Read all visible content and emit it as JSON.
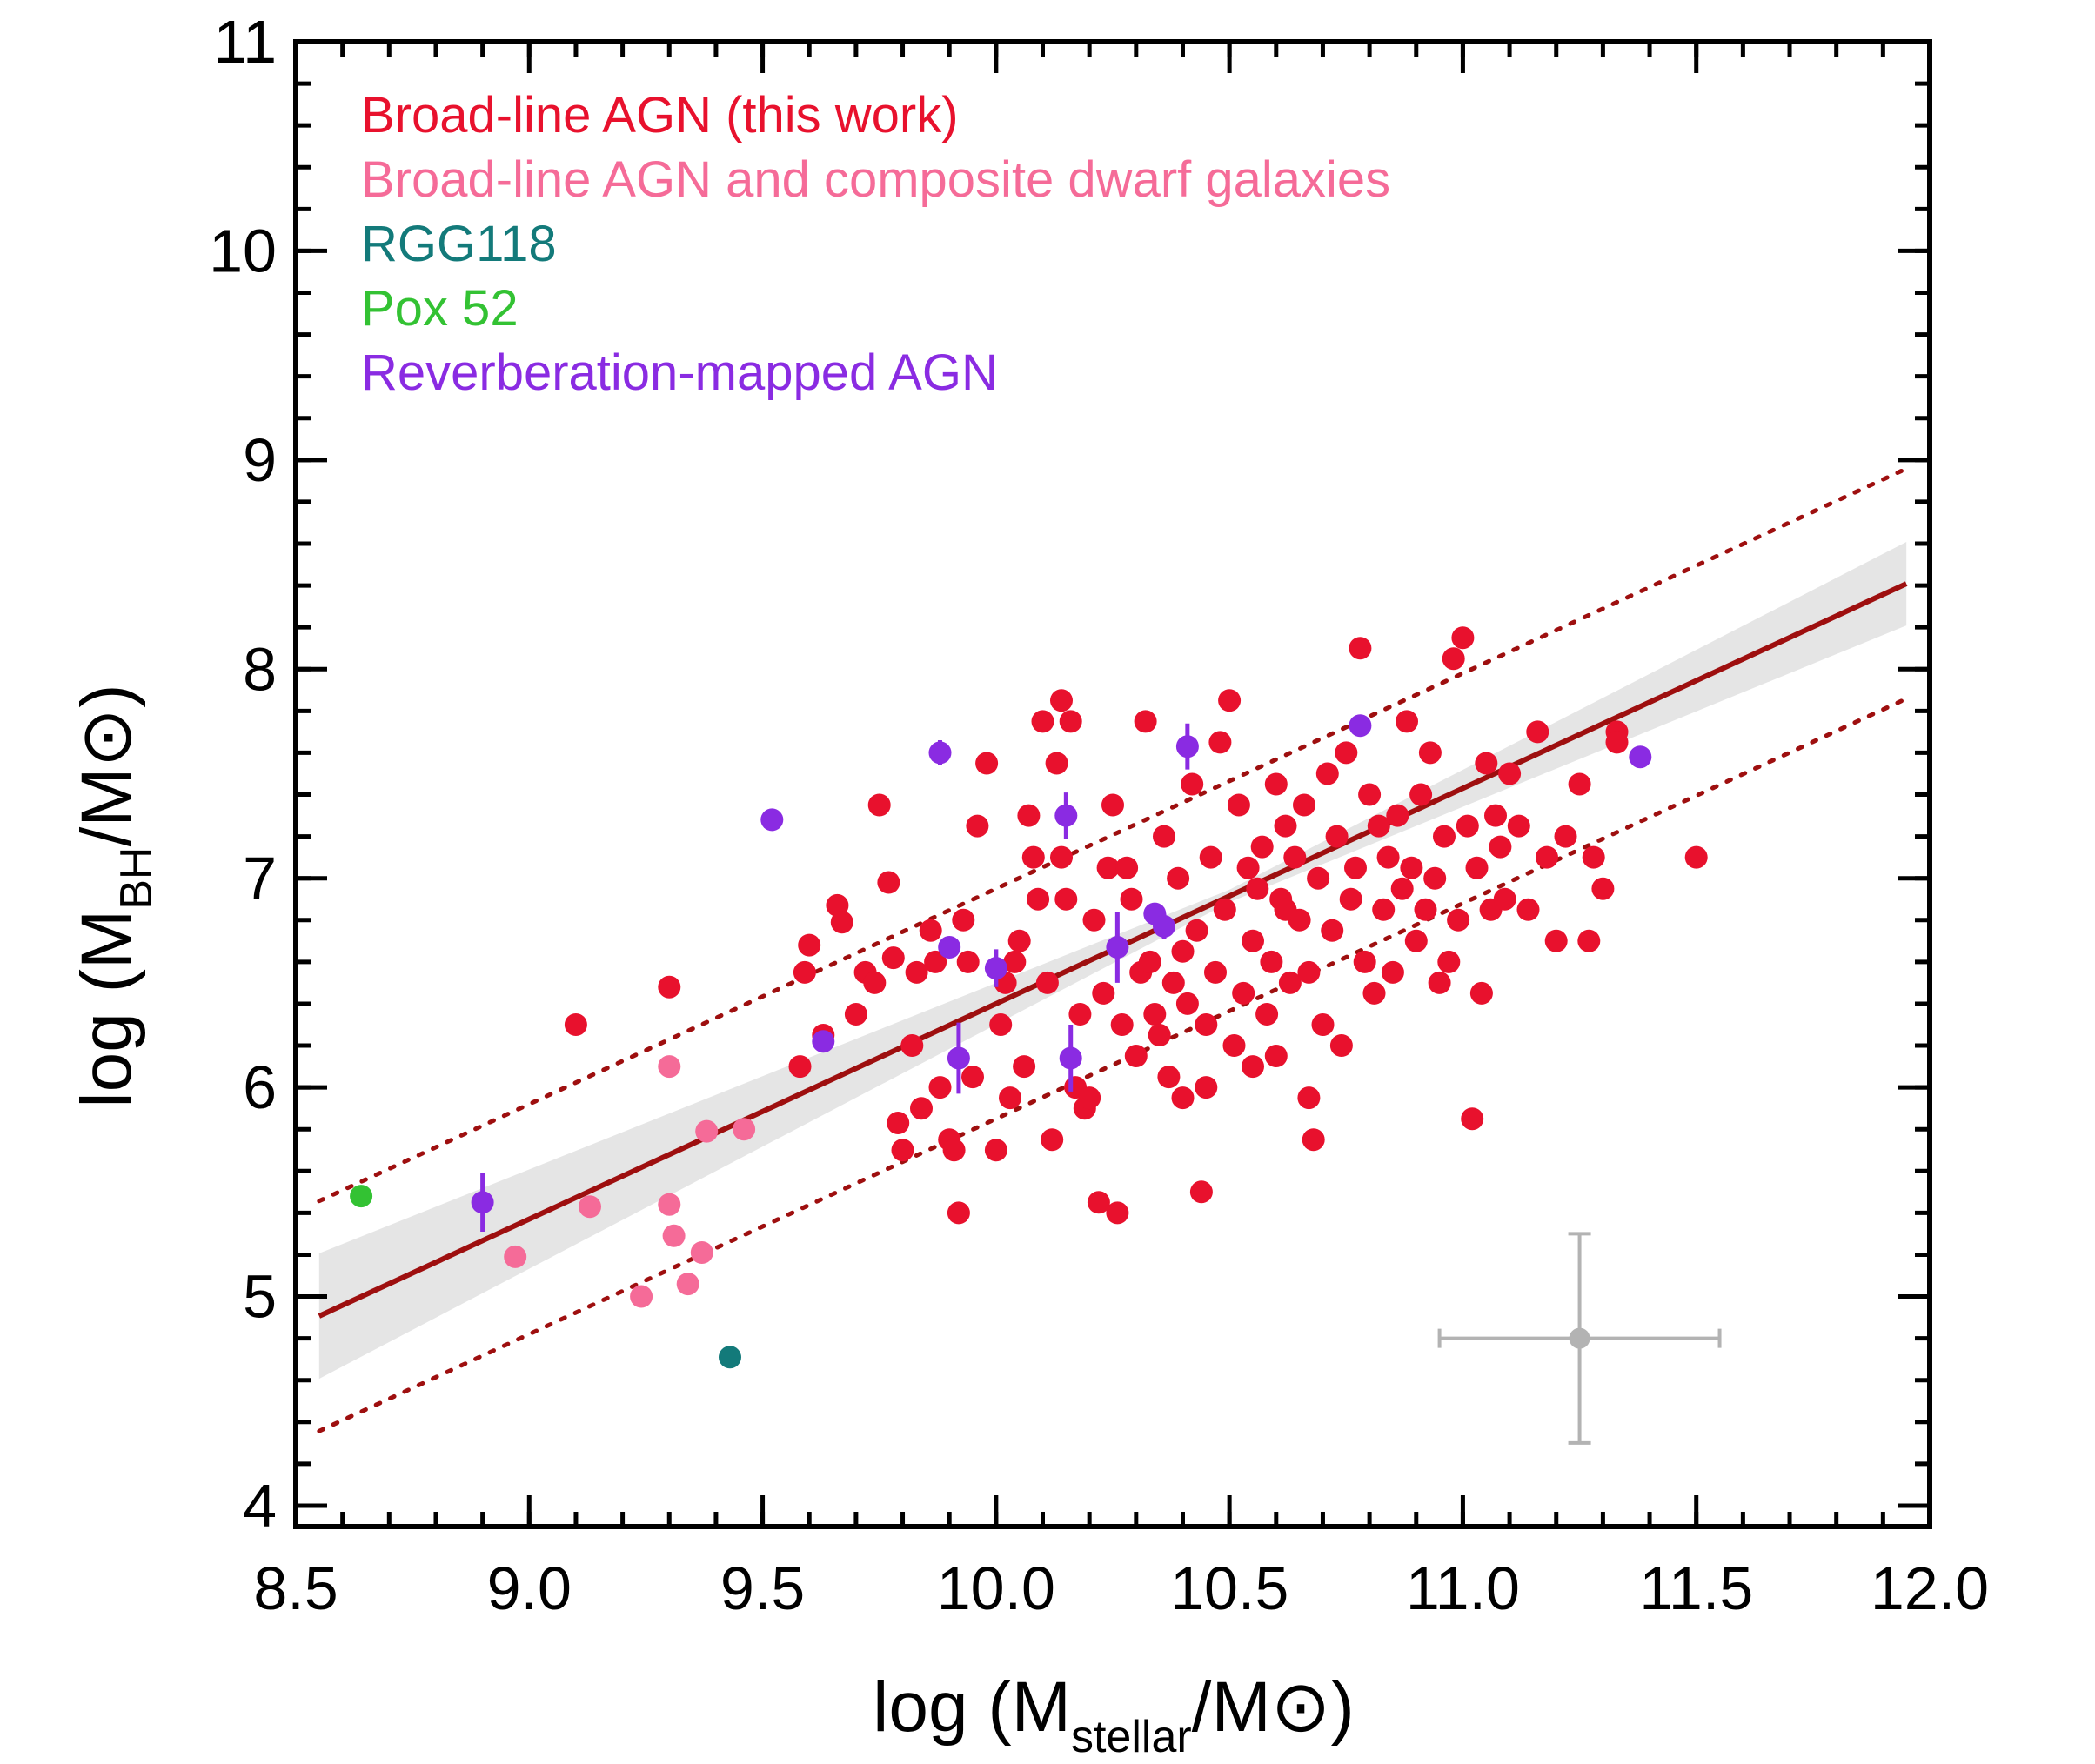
{
  "chart_data": {
    "type": "scatter",
    "xlabel": {
      "main": "log (M",
      "sub": "stellar",
      "rest": "/M",
      "sun": "⊙",
      "close": ")"
    },
    "ylabel": {
      "main": "log (M",
      "sub": "BH",
      "rest": "/M",
      "sun": "⊙",
      "close": ")"
    },
    "xlim": [
      8.5,
      12.0
    ],
    "ylim": [
      3.9,
      11.0
    ],
    "x_ticks": [
      "8.5",
      "9.0",
      "9.5",
      "10.0",
      "10.5",
      "11.0",
      "11.5",
      "12.0"
    ],
    "x_tick_values": [
      8.5,
      9.0,
      9.5,
      10.0,
      10.5,
      11.0,
      11.5,
      12.0
    ],
    "y_ticks": [
      "4",
      "5",
      "6",
      "7",
      "8",
      "9",
      "10",
      "11"
    ],
    "y_tick_values": [
      4,
      5,
      6,
      7,
      8,
      9,
      10,
      11
    ],
    "legend_position": "top-left",
    "colors": {
      "broad": "#e8112d",
      "composite": "#f56b98",
      "rgg": "#137a7a",
      "pox": "#33c233",
      "rm": "#8a2be2",
      "fit": "#9e0f0f",
      "band": "#dcdcdc",
      "errorbar": "#b3b3b3"
    },
    "fit": {
      "slope": 1.03,
      "intercept": -3.9,
      "x_range": [
        8.55,
        11.95
      ],
      "band_inner": 0.2,
      "band_outer": 0.3,
      "scatter_offset": 0.55
    },
    "typical_error": {
      "x": 11.25,
      "y": 4.8,
      "xerr": 0.3,
      "yerr": 0.5
    },
    "series": [
      {
        "name": "Broad-line AGN (this work)",
        "key": "broad",
        "points": [
          [
            9.1,
            6.3
          ],
          [
            9.3,
            6.48
          ],
          [
            9.58,
            6.1
          ],
          [
            9.59,
            6.55
          ],
          [
            9.6,
            6.68
          ],
          [
            9.63,
            6.25
          ],
          [
            9.66,
            6.87
          ],
          [
            9.67,
            6.79
          ],
          [
            9.7,
            6.35
          ],
          [
            9.72,
            6.55
          ],
          [
            9.74,
            6.5
          ],
          [
            9.75,
            7.35
          ],
          [
            9.77,
            6.98
          ],
          [
            9.78,
            6.62
          ],
          [
            9.79,
            5.83
          ],
          [
            9.8,
            5.7
          ],
          [
            9.82,
            6.2
          ],
          [
            9.83,
            6.55
          ],
          [
            9.84,
            5.9
          ],
          [
            9.86,
            6.75
          ],
          [
            9.87,
            6.6
          ],
          [
            9.88,
            6.0
          ],
          [
            9.9,
            5.75
          ],
          [
            9.91,
            5.7
          ],
          [
            9.92,
            5.4
          ],
          [
            9.93,
            6.8
          ],
          [
            9.94,
            6.6
          ],
          [
            9.95,
            6.05
          ],
          [
            9.96,
            7.25
          ],
          [
            9.98,
            7.55
          ],
          [
            10.0,
            5.7
          ],
          [
            10.01,
            6.3
          ],
          [
            10.02,
            6.5
          ],
          [
            10.03,
            5.95
          ],
          [
            10.04,
            6.6
          ],
          [
            10.05,
            6.7
          ],
          [
            10.06,
            6.1
          ],
          [
            10.07,
            7.3
          ],
          [
            10.08,
            7.1
          ],
          [
            10.09,
            6.9
          ],
          [
            10.1,
            7.75
          ],
          [
            10.11,
            6.5
          ],
          [
            10.12,
            5.75
          ],
          [
            10.13,
            7.55
          ],
          [
            10.14,
            7.85
          ],
          [
            10.14,
            7.1
          ],
          [
            10.15,
            6.9
          ],
          [
            10.16,
            7.75
          ],
          [
            10.17,
            6.0
          ],
          [
            10.18,
            6.35
          ],
          [
            10.19,
            5.9
          ],
          [
            10.2,
            5.95
          ],
          [
            10.21,
            6.8
          ],
          [
            10.22,
            5.45
          ],
          [
            10.23,
            6.45
          ],
          [
            10.24,
            7.05
          ],
          [
            10.25,
            7.35
          ],
          [
            10.26,
            5.4
          ],
          [
            10.27,
            6.3
          ],
          [
            10.28,
            7.05
          ],
          [
            10.29,
            6.9
          ],
          [
            10.3,
            6.15
          ],
          [
            10.31,
            6.55
          ],
          [
            10.32,
            7.75
          ],
          [
            10.33,
            6.6
          ],
          [
            10.34,
            6.35
          ],
          [
            10.35,
            6.25
          ],
          [
            10.36,
            7.2
          ],
          [
            10.37,
            6.05
          ],
          [
            10.38,
            6.5
          ],
          [
            10.39,
            7.0
          ],
          [
            10.4,
            6.65
          ],
          [
            10.41,
            6.4
          ],
          [
            10.42,
            7.45
          ],
          [
            10.43,
            6.75
          ],
          [
            10.44,
            5.5
          ],
          [
            10.45,
            6.3
          ],
          [
            10.46,
            7.1
          ],
          [
            10.47,
            6.55
          ],
          [
            10.48,
            7.65
          ],
          [
            10.49,
            6.85
          ],
          [
            10.5,
            7.85
          ],
          [
            10.51,
            6.2
          ],
          [
            10.52,
            7.35
          ],
          [
            10.53,
            6.45
          ],
          [
            10.54,
            7.05
          ],
          [
            10.55,
            6.7
          ],
          [
            10.56,
            6.95
          ],
          [
            10.57,
            7.15
          ],
          [
            10.58,
            6.35
          ],
          [
            10.59,
            6.6
          ],
          [
            10.6,
            7.45
          ],
          [
            10.61,
            6.9
          ],
          [
            10.62,
            7.25
          ],
          [
            10.63,
            6.5
          ],
          [
            10.64,
            7.1
          ],
          [
            10.65,
            6.8
          ],
          [
            10.66,
            7.35
          ],
          [
            10.67,
            6.55
          ],
          [
            10.68,
            5.75
          ],
          [
            10.69,
            7.0
          ],
          [
            10.7,
            6.3
          ],
          [
            10.71,
            7.5
          ],
          [
            10.72,
            6.75
          ],
          [
            10.73,
            7.2
          ],
          [
            10.74,
            6.2
          ],
          [
            10.75,
            7.6
          ],
          [
            10.76,
            6.9
          ],
          [
            10.77,
            7.05
          ],
          [
            10.78,
            8.1
          ],
          [
            10.79,
            6.6
          ],
          [
            10.8,
            7.4
          ],
          [
            10.81,
            6.45
          ],
          [
            10.82,
            7.25
          ],
          [
            10.83,
            6.85
          ],
          [
            10.84,
            7.1
          ],
          [
            10.85,
            6.55
          ],
          [
            10.86,
            7.3
          ],
          [
            10.87,
            6.95
          ],
          [
            10.88,
            7.75
          ],
          [
            10.89,
            7.05
          ],
          [
            10.9,
            6.7
          ],
          [
            10.91,
            7.4
          ],
          [
            10.92,
            6.85
          ],
          [
            10.93,
            7.6
          ],
          [
            10.94,
            7.0
          ],
          [
            10.95,
            6.5
          ],
          [
            10.96,
            7.2
          ],
          [
            10.97,
            6.6
          ],
          [
            10.98,
            8.05
          ],
          [
            10.99,
            6.8
          ],
          [
            11.0,
            8.15
          ],
          [
            11.01,
            7.25
          ],
          [
            11.02,
            5.85
          ],
          [
            11.03,
            7.05
          ],
          [
            11.04,
            6.45
          ],
          [
            11.05,
            7.55
          ],
          [
            11.06,
            6.85
          ],
          [
            11.07,
            7.3
          ],
          [
            11.08,
            7.15
          ],
          [
            11.09,
            6.9
          ],
          [
            11.1,
            7.5
          ],
          [
            11.12,
            7.25
          ],
          [
            11.14,
            6.85
          ],
          [
            11.16,
            7.7
          ],
          [
            11.18,
            7.1
          ],
          [
            11.2,
            6.7
          ],
          [
            11.22,
            7.2
          ],
          [
            11.25,
            7.45
          ],
          [
            11.27,
            6.7
          ],
          [
            11.3,
            6.95
          ],
          [
            11.33,
            7.7
          ],
          [
            11.33,
            7.65
          ],
          [
            11.5,
            7.1
          ],
          [
            11.28,
            7.1
          ],
          [
            10.67,
            5.95
          ],
          [
            10.55,
            6.1
          ],
          [
            10.4,
            5.95
          ],
          [
            10.6,
            6.15
          ],
          [
            10.62,
            6.85
          ],
          [
            10.45,
            6.0
          ]
        ]
      },
      {
        "name": "Broad-line AGN and composite dwarf galaxies",
        "key": "composite",
        "points": [
          [
            8.97,
            5.19
          ],
          [
            9.13,
            5.43
          ],
          [
            9.24,
            5.0
          ],
          [
            9.3,
            6.1
          ],
          [
            9.3,
            5.44
          ],
          [
            9.31,
            5.29
          ],
          [
            9.34,
            5.06
          ],
          [
            9.37,
            5.21
          ],
          [
            9.38,
            5.79
          ],
          [
            9.46,
            5.8
          ]
        ]
      },
      {
        "name": "RGG118",
        "key": "rgg",
        "points": [
          [
            9.43,
            4.71
          ]
        ]
      },
      {
        "name": "Pox 52",
        "key": "pox",
        "points": [
          [
            8.64,
            5.48
          ]
        ]
      },
      {
        "name": "Reverberation-mapped AGN",
        "key": "rm",
        "points": [
          [
            8.9,
            5.45,
            0.14
          ],
          [
            9.52,
            7.28,
            0.05
          ],
          [
            9.63,
            6.22,
            0.05
          ],
          [
            9.88,
            7.6,
            0.06
          ],
          [
            9.9,
            6.67,
            0.05
          ],
          [
            9.92,
            6.14,
            0.17
          ],
          [
            10.0,
            6.57,
            0.09
          ],
          [
            10.15,
            7.3,
            0.11
          ],
          [
            10.16,
            6.14,
            0.16
          ],
          [
            10.26,
            6.67,
            0.17
          ],
          [
            10.34,
            6.83,
            0.05
          ],
          [
            10.36,
            6.77,
            0.06
          ],
          [
            10.41,
            7.63,
            0.11
          ],
          [
            10.78,
            7.73,
            0.05
          ],
          [
            11.38,
            7.58,
            0.05
          ]
        ]
      }
    ]
  }
}
